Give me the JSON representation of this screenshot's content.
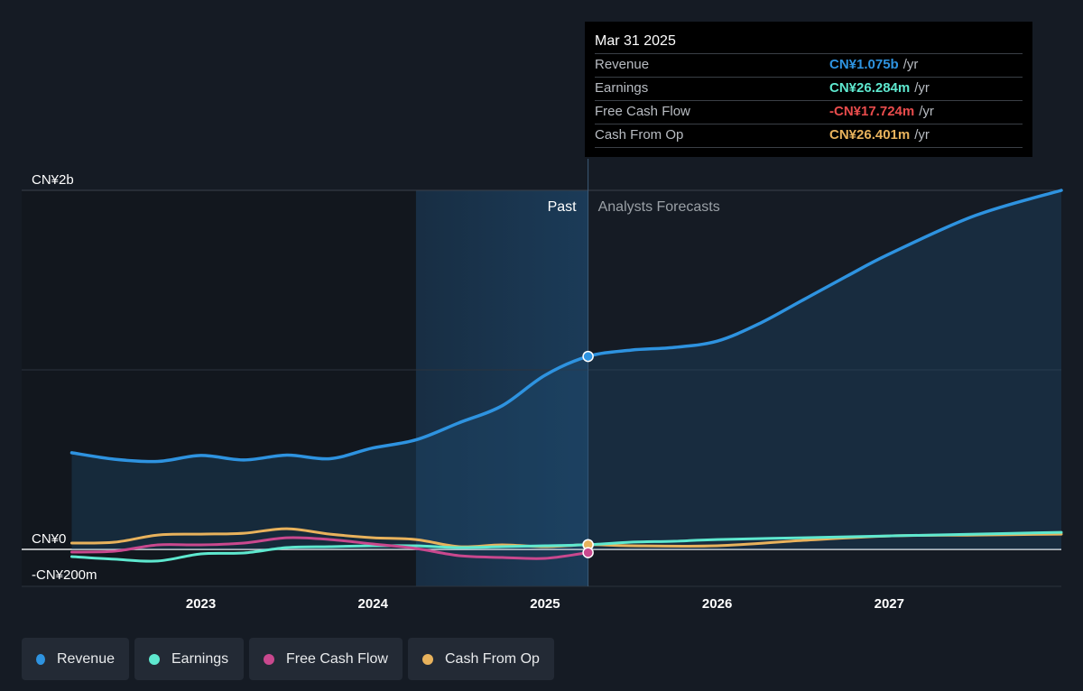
{
  "colors": {
    "background": "#151b24",
    "revenue": "#2e93e0",
    "earnings": "#5ee8cf",
    "free_cash_flow": "#c9488e",
    "cash_from_op": "#e8b25c",
    "fcf_negative_text": "#e84c4c"
  },
  "tooltip": {
    "date": "Mar 31 2025",
    "rows": [
      {
        "label": "Revenue",
        "value": "CN¥1.075b",
        "unit": "/yr"
      },
      {
        "label": "Earnings",
        "value": "CN¥26.284m",
        "unit": "/yr"
      },
      {
        "label": "Free Cash Flow",
        "value": "-CN¥17.724m",
        "unit": "/yr"
      },
      {
        "label": "Cash From Op",
        "value": "CN¥26.401m",
        "unit": "/yr"
      }
    ]
  },
  "legend": [
    {
      "label": "Revenue",
      "icon": "revenue-dot-icon"
    },
    {
      "label": "Earnings",
      "icon": "earnings-dot-icon"
    },
    {
      "label": "Free Cash Flow",
      "icon": "free-cash-flow-dot-icon"
    },
    {
      "label": "Cash From Op",
      "icon": "cash-from-op-dot-icon"
    }
  ],
  "chart_data": {
    "type": "line",
    "y_tick_labels": [
      "CN¥2b",
      "CN¥0",
      "-CN¥200m"
    ],
    "x_tick_labels": [
      "2023",
      "2024",
      "2025",
      "2026",
      "2027"
    ],
    "xlim": [
      2022.2,
      2028.0
    ],
    "ylim": [
      -200,
      2000
    ],
    "y_unit": "CN¥ millions",
    "grid": true,
    "past_label": "Past",
    "forecast_label": "Analysts Forecasts",
    "past_region_start": 2024.25,
    "divider_x": 2025.25,
    "series": [
      {
        "name": "Revenue",
        "color": "#2e93e0",
        "points": [
          [
            2022.25,
            538
          ],
          [
            2022.5,
            502
          ],
          [
            2022.75,
            490
          ],
          [
            2023.0,
            523
          ],
          [
            2023.25,
            498
          ],
          [
            2023.5,
            525
          ],
          [
            2023.75,
            505
          ],
          [
            2024.0,
            565
          ],
          [
            2024.25,
            610
          ],
          [
            2024.5,
            705
          ],
          [
            2024.75,
            800
          ],
          [
            2025.0,
            970
          ],
          [
            2025.25,
            1075
          ],
          [
            2025.5,
            1110
          ],
          [
            2025.75,
            1125
          ],
          [
            2026.0,
            1160
          ],
          [
            2026.25,
            1260
          ],
          [
            2026.5,
            1390
          ],
          [
            2026.75,
            1520
          ],
          [
            2027.0,
            1645
          ],
          [
            2027.5,
            1860
          ],
          [
            2028.0,
            2000
          ]
        ]
      },
      {
        "name": "Earnings",
        "color": "#5ee8cf",
        "points": [
          [
            2022.25,
            -40
          ],
          [
            2022.5,
            -55
          ],
          [
            2022.75,
            -65
          ],
          [
            2023.0,
            -25
          ],
          [
            2023.25,
            -20
          ],
          [
            2023.5,
            10
          ],
          [
            2023.75,
            15
          ],
          [
            2024.0,
            20
          ],
          [
            2024.25,
            20
          ],
          [
            2024.5,
            10
          ],
          [
            2024.75,
            15
          ],
          [
            2025.0,
            20
          ],
          [
            2025.25,
            26
          ],
          [
            2025.5,
            40
          ],
          [
            2025.75,
            45
          ],
          [
            2026.0,
            55
          ],
          [
            2026.5,
            65
          ],
          [
            2027.0,
            75
          ],
          [
            2027.5,
            85
          ],
          [
            2028.0,
            95
          ]
        ]
      },
      {
        "name": "Free Cash Flow",
        "color": "#c9488e",
        "points": [
          [
            2022.25,
            -15
          ],
          [
            2022.5,
            -10
          ],
          [
            2022.75,
            25
          ],
          [
            2023.0,
            25
          ],
          [
            2023.25,
            35
          ],
          [
            2023.5,
            65
          ],
          [
            2023.75,
            55
          ],
          [
            2024.0,
            30
          ],
          [
            2024.25,
            5
          ],
          [
            2024.5,
            -35
          ],
          [
            2024.75,
            -45
          ],
          [
            2025.0,
            -50
          ],
          [
            2025.25,
            -18
          ]
        ]
      },
      {
        "name": "Cash From Op",
        "color": "#e8b25c",
        "points": [
          [
            2022.25,
            35
          ],
          [
            2022.5,
            40
          ],
          [
            2022.75,
            80
          ],
          [
            2023.0,
            85
          ],
          [
            2023.25,
            90
          ],
          [
            2023.5,
            115
          ],
          [
            2023.75,
            85
          ],
          [
            2024.0,
            65
          ],
          [
            2024.25,
            55
          ],
          [
            2024.5,
            15
          ],
          [
            2024.75,
            25
          ],
          [
            2025.0,
            15
          ],
          [
            2025.25,
            26
          ],
          [
            2025.5,
            20
          ],
          [
            2026.0,
            20
          ],
          [
            2026.5,
            50
          ],
          [
            2027.0,
            75
          ],
          [
            2027.5,
            80
          ],
          [
            2028.0,
            85
          ]
        ]
      }
    ]
  }
}
